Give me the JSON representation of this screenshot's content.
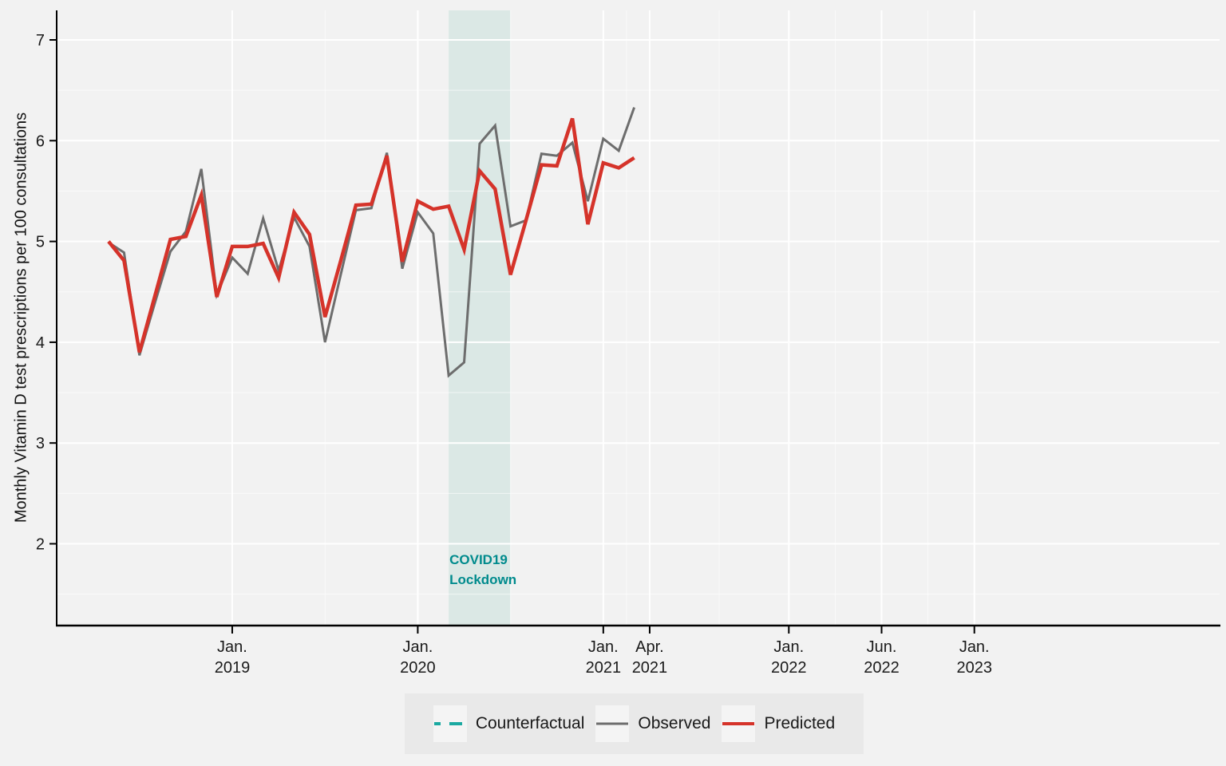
{
  "figure": {
    "bg": "#f2f2f2",
    "panel_bg": "#f2f2f2",
    "grid_major_color": "#ffffff",
    "grid_minor_color": "rgba(255,255,255,0.6)",
    "axis_color": "#000000",
    "tick_label_color": "#1a1a1a"
  },
  "chart_data": {
    "type": "line",
    "title": "",
    "xlabel": "",
    "ylabel": "Monthly Vitamin D test prescriptions per 100 consultations",
    "ylim": [
      1.2,
      7.3
    ],
    "yticks": [
      7,
      6,
      5,
      4,
      3,
      2
    ],
    "y_minor": [
      1.5,
      2.5,
      3.5,
      4.5,
      5.5,
      6.5
    ],
    "grid": "on",
    "legend_position": "bottom",
    "x": [
      "2018-05",
      "2018-06",
      "2018-07",
      "2018-08",
      "2018-09",
      "2018-10",
      "2018-11",
      "2018-12",
      "2019-01",
      "2019-02",
      "2019-03",
      "2019-04",
      "2019-05",
      "2019-06",
      "2019-07",
      "2019-08",
      "2019-09",
      "2019-10",
      "2019-11",
      "2019-12",
      "2020-01",
      "2020-02",
      "2020-03",
      "2020-04",
      "2020-05",
      "2020-06",
      "2020-07",
      "2020-08",
      "2020-09",
      "2020-10",
      "2020-11",
      "2020-12",
      "2021-01",
      "2021-02",
      "2021-03"
    ],
    "series": [
      {
        "name": "Observed",
        "color": "#6d6d6d",
        "values": [
          4.99,
          4.89,
          3.87,
          4.39,
          4.9,
          5.1,
          5.72,
          4.47,
          4.84,
          4.68,
          5.23,
          4.71,
          5.24,
          4.95,
          4.0,
          4.66,
          5.31,
          5.33,
          5.88,
          4.73,
          5.29,
          5.08,
          3.67,
          3.8,
          5.97,
          6.15,
          5.15,
          5.21,
          5.87,
          5.85,
          5.98,
          5.4,
          6.02,
          5.9,
          6.33
        ]
      },
      {
        "name": "Predicted",
        "color": "#d5332a",
        "values": [
          5.0,
          4.81,
          3.9,
          4.46,
          5.02,
          5.05,
          5.46,
          4.45,
          4.95,
          4.95,
          4.98,
          4.64,
          5.29,
          5.07,
          4.25,
          4.8,
          5.36,
          5.37,
          5.85,
          4.8,
          5.4,
          5.32,
          5.35,
          4.92,
          5.7,
          5.52,
          4.67,
          5.21,
          5.76,
          5.75,
          6.22,
          5.17,
          5.78,
          5.73,
          5.83
        ]
      }
    ],
    "xticks": [
      {
        "idx": 8,
        "top": "Jan.",
        "bottom": "2019"
      },
      {
        "idx": 20,
        "top": "Jan.",
        "bottom": "2020"
      },
      {
        "idx": 32,
        "top": "Jan.",
        "bottom": "2021"
      },
      {
        "idx": 35,
        "top": "Apr.",
        "bottom": "2021"
      },
      {
        "idx": 44,
        "top": "Jan.",
        "bottom": "2022"
      },
      {
        "idx": 50,
        "top": "Jun.",
        "bottom": "2022"
      },
      {
        "idx": 56,
        "top": "Jan.",
        "bottom": "2023"
      }
    ],
    "x_minor_idx": [
      14,
      26,
      33.5,
      39.5,
      47,
      53
    ],
    "band": {
      "from_idx": 22,
      "to_idx": 26,
      "color": "#dbe8e5",
      "label_line1": "COVID19",
      "label_line2": "Lockdown",
      "label_color": "#008b8d"
    },
    "legend": [
      {
        "label": "Counterfactual",
        "color": "#1ba9a1",
        "dash": "8 11 16"
      },
      {
        "label": "Observed",
        "color": "#6d6d6d",
        "dash": ""
      },
      {
        "label": "Predicted",
        "color": "#d5332a",
        "dash": ""
      }
    ]
  }
}
